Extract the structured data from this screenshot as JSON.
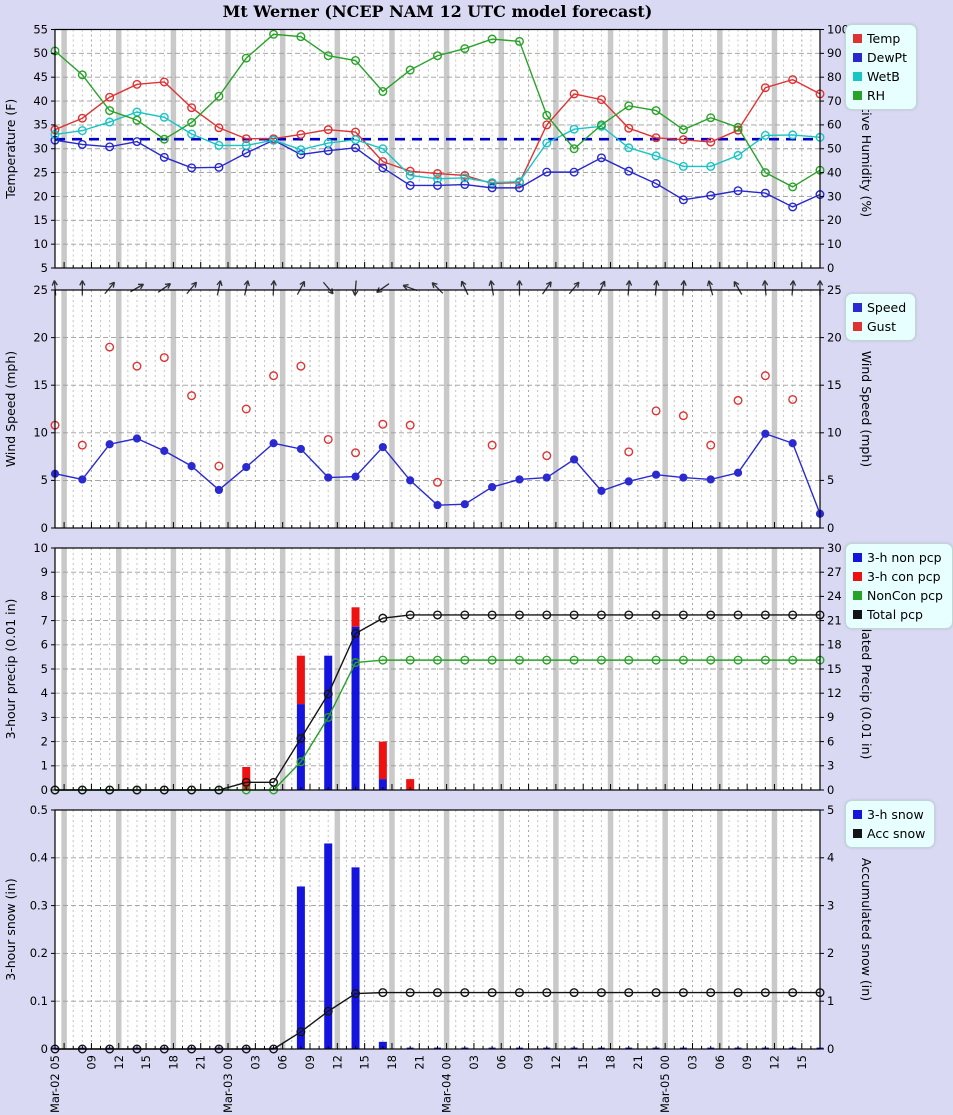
{
  "title": "Mt Werner (NCEP NAM 12 UTC model forecast)",
  "colors": {
    "background": "#d9d9f3",
    "plot_background": "#ffffff",
    "six_hour_band": "#c9c9c9",
    "hour_grid": "#c4c4c4",
    "three_hour_grid": "#a4a4a4",
    "horizontal_grid": "#9c9c9c",
    "axis": "#000000",
    "freezing_line": "#0000cc",
    "arrow": "#303030",
    "legend_background": "#e8ffff"
  },
  "x_axis": {
    "total_hours": 84,
    "point_interval_hours": 3,
    "band_start_hour": 1,
    "band_interval_hours": 6,
    "ticks": [
      {
        "h": 0,
        "label": "Mar-02 05"
      },
      {
        "h": 4,
        "label": "09"
      },
      {
        "h": 7,
        "label": "12"
      },
      {
        "h": 10,
        "label": "15"
      },
      {
        "h": 13,
        "label": "18"
      },
      {
        "h": 16,
        "label": "21"
      },
      {
        "h": 19,
        "label": "Mar-03 00"
      },
      {
        "h": 22,
        "label": "03"
      },
      {
        "h": 25,
        "label": "06"
      },
      {
        "h": 28,
        "label": "09"
      },
      {
        "h": 31,
        "label": "12"
      },
      {
        "h": 34,
        "label": "15"
      },
      {
        "h": 37,
        "label": "18"
      },
      {
        "h": 40,
        "label": "21"
      },
      {
        "h": 43,
        "label": "Mar-04 00"
      },
      {
        "h": 46,
        "label": "03"
      },
      {
        "h": 49,
        "label": "06"
      },
      {
        "h": 52,
        "label": "09"
      },
      {
        "h": 55,
        "label": "12"
      },
      {
        "h": 58,
        "label": "15"
      },
      {
        "h": 61,
        "label": "18"
      },
      {
        "h": 64,
        "label": "21"
      },
      {
        "h": 67,
        "label": "Mar-05 00"
      },
      {
        "h": 70,
        "label": "03"
      },
      {
        "h": 73,
        "label": "06"
      },
      {
        "h": 76,
        "label": "09"
      },
      {
        "h": 79,
        "label": "12"
      },
      {
        "h": 82,
        "label": "15"
      }
    ]
  },
  "chart_data": [
    {
      "panel": "temperature-humidity",
      "type": "line",
      "axes": {
        "left": {
          "label": "Temperature (F)",
          "min": 5,
          "max": 55,
          "step": 5
        },
        "right": {
          "label": "Relative Humidity (%)",
          "min": 0,
          "max": 100,
          "step": 10
        }
      },
      "freezing_line_f": 32,
      "series": [
        {
          "name": "Temp",
          "color": "#e03232",
          "axis": "left",
          "marker": "open",
          "values": [
            34.0,
            36.4,
            40.8,
            43.5,
            44.0,
            38.6,
            34.4,
            32.1,
            32.1,
            33.0,
            34.0,
            33.5,
            27.3,
            25.3,
            24.8,
            24.4,
            22.7,
            22.9,
            35.0,
            41.5,
            40.3,
            34.3,
            32.3,
            31.9,
            31.4,
            33.9,
            42.8,
            44.5,
            41.5
          ]
        },
        {
          "name": "DewPt",
          "color": "#2828cc",
          "axis": "left",
          "marker": "open",
          "values": [
            31.8,
            30.9,
            30.4,
            31.5,
            28.2,
            26.0,
            26.1,
            29.1,
            31.8,
            28.8,
            29.6,
            30.2,
            26.0,
            22.3,
            22.3,
            22.5,
            21.8,
            21.8,
            25.1,
            25.1,
            28.1,
            25.3,
            22.7,
            19.3,
            20.2,
            21.2,
            20.7,
            17.8,
            20.4
          ]
        },
        {
          "name": "WetB",
          "color": "#18c4c4",
          "axis": "left",
          "marker": "open",
          "values": [
            33.0,
            33.8,
            35.6,
            37.7,
            36.6,
            33.1,
            30.7,
            30.7,
            31.8,
            29.8,
            31.2,
            31.9,
            30.0,
            24.4,
            23.7,
            23.9,
            22.9,
            23.1,
            31.2,
            34.1,
            34.7,
            30.2,
            28.5,
            26.3,
            26.3,
            28.6,
            32.8,
            32.9,
            32.4
          ]
        },
        {
          "name": "RH",
          "color": "#28a228",
          "axis": "right",
          "marker": "open",
          "values": [
            91,
            81,
            66,
            62,
            54,
            61,
            72,
            88,
            98,
            97,
            89,
            87,
            74,
            83,
            89,
            92,
            96,
            95,
            64,
            50,
            60,
            68,
            66,
            58,
            63,
            59,
            40,
            34,
            41
          ]
        }
      ]
    },
    {
      "panel": "wind",
      "type": "line-scatter",
      "axes": {
        "left": {
          "label": "Wind Speed (mph)",
          "min": 0,
          "max": 25,
          "step": 5
        },
        "right": {
          "label": "Wind Speed (mph)",
          "min": 0,
          "max": 25,
          "step": 5
        }
      },
      "series": [
        {
          "name": "Speed",
          "color": "#2a2ad0",
          "axis": "left",
          "marker": "filled",
          "line": true,
          "values": [
            5.7,
            5.1,
            8.8,
            9.4,
            8.1,
            6.5,
            4.0,
            6.4,
            8.9,
            8.3,
            5.3,
            5.4,
            8.5,
            5.0,
            2.4,
            2.5,
            4.3,
            5.1,
            5.3,
            7.2,
            3.9,
            4.9,
            5.6,
            5.3,
            5.1,
            5.8,
            9.9,
            8.9,
            1.5
          ]
        },
        {
          "name": "Gust",
          "color": "#e03232",
          "axis": "left",
          "marker": "open",
          "line": false,
          "values": [
            10.8,
            8.7,
            19.0,
            17.0,
            17.9,
            13.9,
            6.5,
            12.5,
            16.0,
            17.0,
            9.3,
            7.9,
            10.9,
            10.8,
            4.8,
            null,
            8.7,
            null,
            7.6,
            null,
            null,
            8.0,
            12.3,
            11.8,
            8.7,
            13.4,
            16.0,
            13.5,
            null
          ]
        }
      ],
      "wind_arrows_deg": [
        -5,
        0,
        40,
        60,
        55,
        40,
        12,
        12,
        3,
        28,
        140,
        185,
        235,
        290,
        315,
        335,
        350,
        0,
        35,
        40,
        25,
        5,
        5,
        5,
        345,
        330,
        355,
        5,
        0
      ]
    },
    {
      "panel": "precipitation",
      "type": "bar-line",
      "axes": {
        "left": {
          "label": "3-hour precip (0.01 in)",
          "min": 0,
          "max": 10,
          "step": 1
        },
        "right": {
          "label": "Accumulated Precip (0.01 in)",
          "min": 0,
          "max": 30,
          "step": 3
        }
      },
      "bars": [
        {
          "name": "3-h non pcp",
          "color": "#1414dd",
          "axis": "left",
          "values": [
            0,
            0,
            0,
            0,
            0,
            0,
            0,
            0,
            0,
            3.55,
            5.55,
            6.75,
            0.45,
            0,
            0,
            0,
            0,
            0,
            0,
            0,
            0,
            0,
            0,
            0,
            0,
            0,
            0,
            0,
            0
          ]
        },
        {
          "name": "3-h con pcp",
          "color": "#ee1111",
          "axis": "left",
          "values": [
            0,
            0,
            0,
            0,
            0,
            0,
            0,
            0.95,
            0,
            2.0,
            0,
            0.8,
            1.55,
            0.45,
            0,
            0,
            0,
            0,
            0,
            0,
            0,
            0,
            0,
            0,
            0,
            0,
            0,
            0,
            0
          ]
        }
      ],
      "lines": [
        {
          "name": "NonCon pcp",
          "color": "#28a228",
          "axis": "right",
          "marker": "open",
          "values": [
            0,
            0,
            0,
            0,
            0,
            0,
            0,
            0,
            0,
            3.5,
            9.0,
            15.8,
            16.1,
            16.1,
            16.1,
            16.1,
            16.1,
            16.1,
            16.1,
            16.1,
            16.1,
            16.1,
            16.1,
            16.1,
            16.1,
            16.1,
            16.1,
            16.1,
            16.1
          ]
        },
        {
          "name": "Total pcp",
          "color": "#141414",
          "axis": "right",
          "marker": "open",
          "values": [
            0,
            0,
            0,
            0,
            0,
            0,
            0,
            0.95,
            0.95,
            6.4,
            11.9,
            19.4,
            21.3,
            21.7,
            21.7,
            21.7,
            21.7,
            21.7,
            21.7,
            21.7,
            21.7,
            21.7,
            21.7,
            21.7,
            21.7,
            21.7,
            21.7,
            21.7,
            21.7
          ]
        }
      ]
    },
    {
      "panel": "snow",
      "type": "bar-line",
      "axes": {
        "left": {
          "label": "3-hour snow (in)",
          "min": 0,
          "max": 0.5,
          "step": 0.1
        },
        "right": {
          "label": "Accumulated snow (in)",
          "min": 0,
          "max": 5,
          "step": 1
        }
      },
      "bars": [
        {
          "name": "3-h snow",
          "color": "#1414dd",
          "axis": "left",
          "values": [
            0,
            0,
            0,
            0,
            0,
            0,
            0,
            0,
            0,
            0.34,
            0.43,
            0.38,
            0.015,
            0,
            0,
            0,
            0,
            0,
            0,
            0,
            0,
            0,
            0,
            0,
            0,
            0,
            0,
            0,
            0
          ]
        }
      ],
      "lines": [
        {
          "name": "Acc snow",
          "color": "#141414",
          "axis": "right",
          "marker": "open",
          "values": [
            0,
            0,
            0,
            0,
            0,
            0,
            0,
            0,
            0,
            0.36,
            0.79,
            1.16,
            1.18,
            1.18,
            1.18,
            1.18,
            1.18,
            1.18,
            1.18,
            1.18,
            1.18,
            1.18,
            1.18,
            1.18,
            1.18,
            1.18,
            1.18,
            1.18,
            1.18
          ]
        }
      ]
    }
  ]
}
